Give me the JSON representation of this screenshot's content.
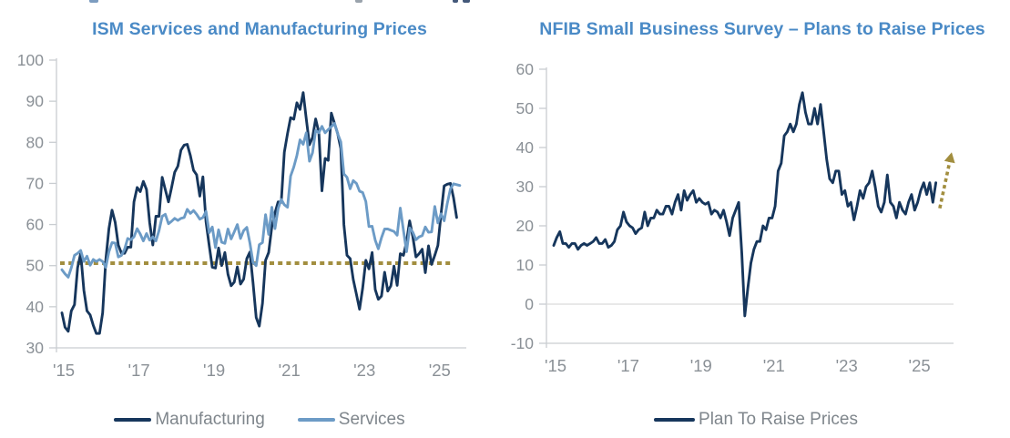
{
  "colors": {
    "navy": "#16365C",
    "light_blue": "#6C9BC6",
    "gold": "#A28E3F",
    "title_blue": "#4A8AC6",
    "axis_line": "#C9CDD1",
    "zero_gridline": "#D9D9D9",
    "tick_label": "#8A9096",
    "legend_text": "#7F868C"
  },
  "chart_data": [
    {
      "type": "line",
      "title": "ISM Services and Manufacturing Prices",
      "x_start": "2015-01",
      "x_frequency": "monthly",
      "ylim": [
        30,
        100
      ],
      "yticks": [
        100,
        90,
        80,
        70,
        60,
        50,
        40,
        30
      ],
      "xtick_months": [
        0,
        24,
        48,
        72,
        96,
        120
      ],
      "xtick_labels": [
        "'15",
        "'17",
        "'19",
        "'21",
        "'23",
        "'25"
      ],
      "grid": "off",
      "legend_position": "bottom",
      "reference_line": {
        "value": 50.6,
        "style": "dotted",
        "color": "#A28E3F"
      },
      "series": [
        {
          "name": "Manufacturing",
          "color": "#16365C",
          "values": [
            38.5,
            35.0,
            34.0,
            39.0,
            40.5,
            49.5,
            53.0,
            44.0,
            39.0,
            38.0,
            35.5,
            33.5,
            33.5,
            38.5,
            51.5,
            59.0,
            63.5,
            60.5,
            55.0,
            53.0,
            53.0,
            54.5,
            54.5,
            65.5,
            69.0,
            68.0,
            70.5,
            68.5,
            60.5,
            55.0,
            62.0,
            62.0,
            71.5,
            68.5,
            65.5,
            69.0,
            72.7,
            74.2,
            78.1,
            79.3,
            79.5,
            76.8,
            73.2,
            72.1,
            66.9,
            71.6,
            60.7,
            54.9,
            49.6,
            49.4,
            54.3,
            50.0,
            53.2,
            47.9,
            45.1,
            46.0,
            49.7,
            45.5,
            46.7,
            51.7,
            53.3,
            45.9,
            37.4,
            35.3,
            40.8,
            51.3,
            53.2,
            59.5,
            62.8,
            65.5,
            65.4,
            77.6,
            82.1,
            86.0,
            85.6,
            89.6,
            88.0,
            92.1,
            85.7,
            79.4,
            81.2,
            85.7,
            82.4,
            68.2,
            76.1,
            75.6,
            87.1,
            84.6,
            82.2,
            78.5,
            60.0,
            52.5,
            51.7,
            46.6,
            43.0,
            39.4,
            44.5,
            51.3,
            49.2,
            53.2,
            44.2,
            41.8,
            42.6,
            48.4,
            43.8,
            45.1,
            49.9,
            45.2,
            52.9,
            52.5,
            55.8,
            60.9,
            57.0,
            52.1,
            52.9,
            54.0,
            48.3,
            54.8,
            50.3,
            52.5,
            54.9,
            62.4,
            69.4,
            69.8,
            70.0,
            66.5,
            61.7
          ]
        },
        {
          "name": "Services",
          "color": "#6C9BC6",
          "values": [
            49.0,
            48.0,
            47.2,
            49.5,
            52.5,
            53.0,
            53.7,
            51.0,
            52.3,
            50.1,
            51.5,
            51.0,
            51.5,
            51.0,
            49.6,
            53.4,
            55.6,
            55.5,
            52.1,
            52.5,
            54.0,
            56.6,
            56.3,
            57.0,
            59.0,
            57.7,
            56.0,
            57.8,
            56.2,
            57.0,
            56.0,
            58.5,
            62.0,
            62.5,
            60.2,
            60.8,
            61.5,
            61.0,
            61.5,
            61.7,
            63.7,
            62.7,
            63.4,
            62.5,
            61.3,
            61.7,
            63.2,
            58.0,
            59.4,
            54.4,
            58.7,
            55.7,
            55.4,
            58.9,
            56.5,
            58.2,
            60.0,
            56.6,
            58.5,
            59.3,
            55.5,
            50.8,
            50.0,
            55.1,
            55.6,
            62.4,
            57.6,
            64.2,
            59.0,
            63.9,
            66.1,
            64.8,
            64.2,
            71.8,
            74.0,
            76.8,
            80.6,
            79.5,
            82.3,
            75.4,
            77.5,
            82.9,
            82.3,
            83.9,
            82.3,
            83.1,
            83.8,
            84.6,
            82.1,
            80.1,
            72.3,
            71.5,
            68.7,
            70.7,
            70.0,
            68.1,
            67.8,
            65.6,
            59.5,
            59.6,
            56.2,
            54.1,
            56.8,
            58.9,
            58.9,
            58.6,
            58.3,
            57.4,
            64.0,
            58.6,
            53.4,
            59.2,
            58.1,
            56.3,
            57.0,
            57.3,
            59.4,
            58.1,
            58.2,
            64.4,
            60.4,
            62.6,
            60.9,
            65.1,
            68.7,
            69.9,
            69.7,
            69.5
          ]
        }
      ]
    },
    {
      "type": "line",
      "title": "NFIB Small Business Survey – Plans to Raise Prices",
      "x_start": "2015-01",
      "x_frequency": "monthly",
      "ylim": [
        -10,
        60
      ],
      "yticks": [
        60,
        50,
        40,
        30,
        20,
        10,
        0,
        -10
      ],
      "xtick_months": [
        0,
        24,
        48,
        72,
        96,
        120
      ],
      "xtick_labels": [
        "'15",
        "'17",
        "'19",
        "'21",
        "'23",
        "'25"
      ],
      "gridlines": [
        0
      ],
      "legend_position": "bottom",
      "annotation_arrow": {
        "style": "dotted",
        "color": "#A28E3F",
        "from_month": 127.3,
        "from_value": 24.5,
        "to_month": 130.6,
        "to_value": 36.5
      },
      "series": [
        {
          "name": "Plan To Raise Prices",
          "color": "#16365C",
          "values": [
            15.0,
            17.0,
            18.5,
            15.5,
            15.5,
            14.5,
            15.5,
            15.5,
            14.0,
            15.0,
            15.5,
            15.0,
            15.5,
            16.0,
            17.0,
            15.5,
            15.5,
            16.5,
            14.5,
            15.0,
            16.0,
            19.0,
            20.0,
            23.5,
            21.0,
            20.0,
            19.5,
            18.0,
            19.0,
            19.5,
            23.5,
            20.0,
            22.0,
            22.0,
            24.0,
            23.0,
            23.0,
            25.0,
            25.0,
            23.0,
            26.0,
            28.0,
            24.0,
            29.0,
            26.5,
            28.0,
            29.0,
            26.0,
            27.0,
            26.0,
            25.5,
            26.0,
            23.0,
            24.0,
            23.5,
            22.0,
            24.0,
            21.0,
            17.5,
            22.0,
            24.0,
            26.0,
            13.0,
            -3.0,
            4.0,
            10.5,
            14.0,
            16.0,
            16.0,
            20.0,
            19.0,
            22.0,
            22.0,
            25.0,
            34.0,
            36.0,
            43.0,
            44.0,
            46.0,
            44.0,
            46.0,
            51.0,
            54.0,
            49.0,
            46.0,
            46.0,
            50.0,
            46.0,
            51.0,
            44.0,
            37.0,
            32.0,
            31.0,
            34.0,
            34.0,
            28.0,
            29.0,
            25.0,
            26.0,
            21.5,
            25.0,
            29.0,
            27.0,
            30.0,
            31.0,
            34.0,
            30.0,
            25.0,
            23.5,
            26.0,
            33.0,
            26.0,
            25.0,
            22.0,
            26.0,
            24.0,
            23.0,
            26.0,
            28.0,
            24.0,
            26.0,
            29.0,
            31.0,
            28.0,
            31.0,
            26.0,
            31.0
          ]
        }
      ]
    }
  ]
}
